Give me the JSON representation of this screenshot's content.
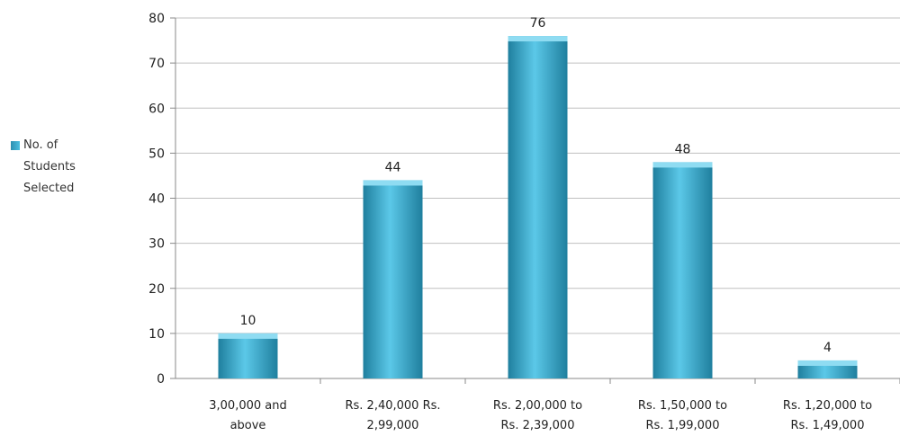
{
  "chart_data": {
    "type": "bar",
    "categories": [
      [
        "3,00,000 and",
        "above"
      ],
      [
        "Rs. 2,40,000 Rs.",
        "2,99,000"
      ],
      [
        "Rs. 2,00,000 to",
        "Rs. 2,39,000"
      ],
      [
        "Rs. 1,50,000 to",
        "Rs. 1,99,000"
      ],
      [
        "Rs. 1,20,000 to",
        "Rs. 1,49,000"
      ]
    ],
    "series": [
      {
        "name": "No. of Students Selected",
        "values": [
          10,
          44,
          76,
          48,
          4
        ]
      }
    ],
    "data_labels": [
      "10",
      "44",
      "76",
      "48",
      "4"
    ],
    "ylim": [
      0,
      80
    ],
    "yticks": [
      "0",
      "10",
      "20",
      "30",
      "40",
      "50",
      "60",
      "70",
      "80"
    ],
    "grid": true,
    "legend_position": "left",
    "legend_lines": [
      "No. of",
      "Students",
      "Selected"
    ],
    "colors": {
      "bar_light": "#5bc8e8",
      "bar_dark": "#1f7f9e",
      "bar_top": "#8fdcf2",
      "grid": "#c0c0c0",
      "axis": "#8a8a8a"
    }
  }
}
